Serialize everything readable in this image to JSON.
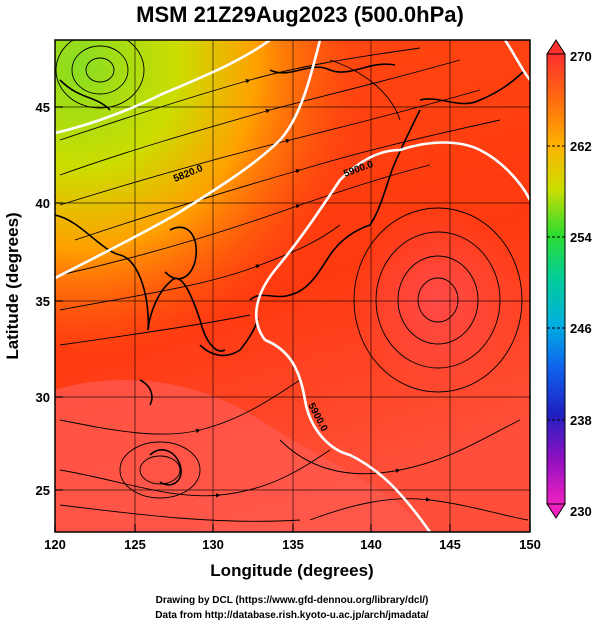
{
  "title": "MSM 21Z29Aug2023 (500.0hPa)",
  "x_axis": {
    "label": "Longitude (degrees)",
    "range": [
      120,
      150
    ],
    "ticks": [
      "120",
      "125",
      "130",
      "135",
      "140",
      "145",
      "150"
    ]
  },
  "y_axis": {
    "label": "Latitude  (degrees)",
    "range": [
      22.5,
      47.6
    ],
    "ticks": [
      "25",
      "30",
      "35",
      "40",
      "45"
    ]
  },
  "colorbar": {
    "min": 230,
    "max": 270,
    "labels": [
      "270",
      "262",
      "254",
      "246",
      "238",
      "230"
    ],
    "colors": [
      "#ff3030",
      "#ff6a10",
      "#ffb000",
      "#ccdd00",
      "#30dd30",
      "#00cc99",
      "#00b0e0",
      "#1060ee",
      "#2020c0",
      "#9010c0",
      "#f020c0"
    ]
  },
  "contours": [
    {
      "label": "5820.0"
    },
    {
      "label": "5880.0"
    },
    {
      "label": "5900.0"
    }
  ],
  "credits": {
    "line1": "Drawing by DCL (https://www.gfd-dennou.org/library/dcl/)",
    "line2": "Data from http://database.rish.kyoto-u.ac.jp/arch/jmadata/"
  },
  "map_colors": {
    "cold_nw": "#88dd22",
    "mid": "#ffa000",
    "warm": "#ff3b10",
    "south": "#ff5a50"
  }
}
